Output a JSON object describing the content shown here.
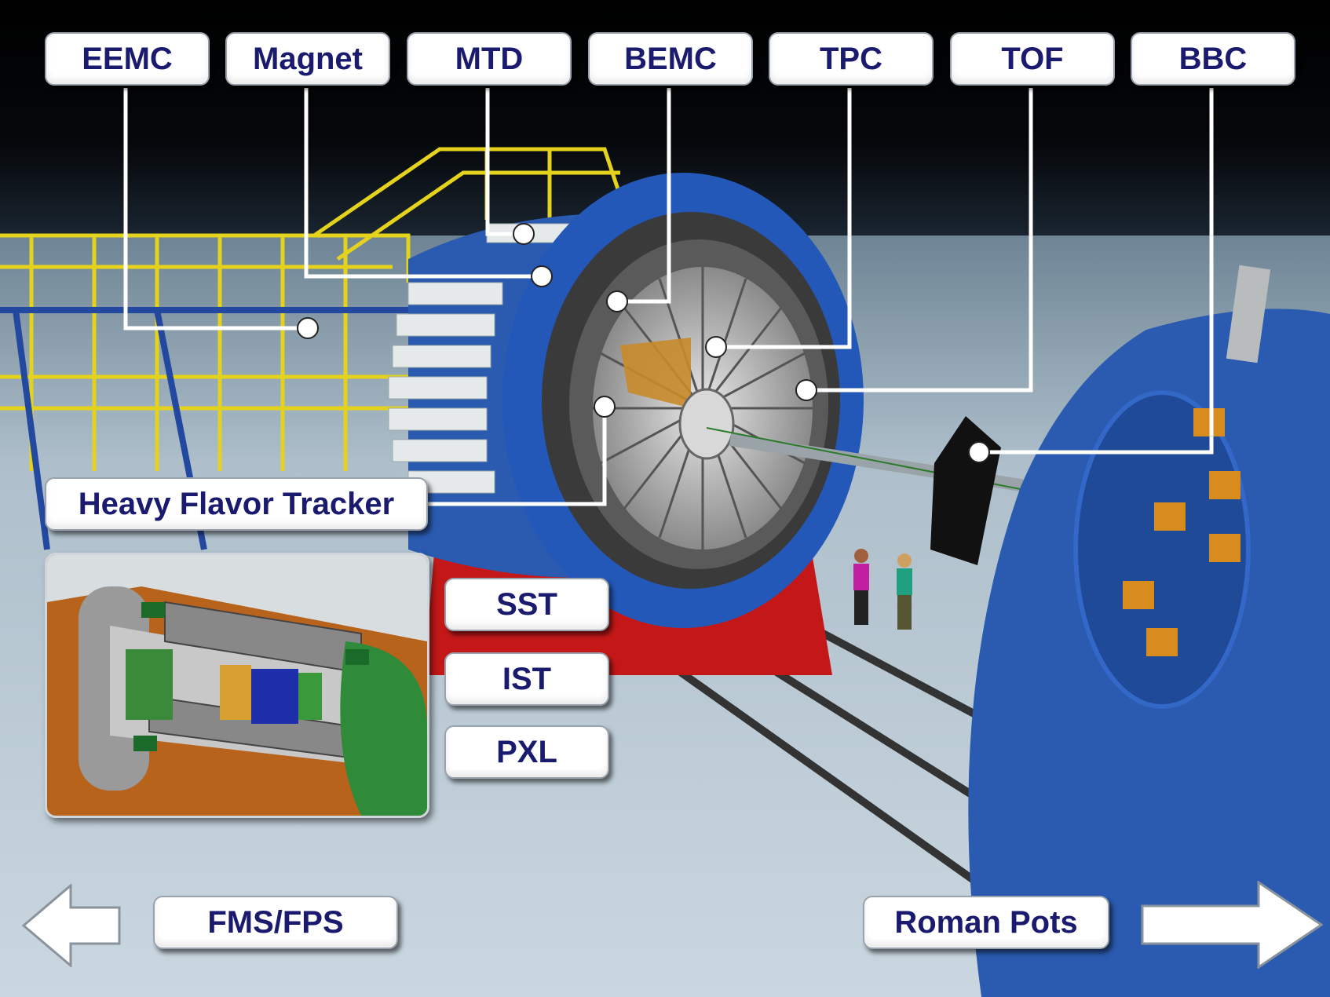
{
  "top_labels": [
    "EEMC",
    "Magnet",
    "MTD",
    "BEMC",
    "TPC",
    "TOF",
    "BBC"
  ],
  "hft_label": "Heavy Flavor Tracker",
  "hft_sub_labels": [
    "SST",
    "IST",
    "PXL"
  ],
  "nav": {
    "prev_label": "FMS/FPS",
    "next_label": "Roman Pots"
  },
  "colors": {
    "label_text": "#1a1a6e",
    "magnet_blue": "#2a5bb0",
    "support_red": "#c41818",
    "scaffold_yellow": "#e0d020",
    "sky": "#000000",
    "floor": "#c0cfd9"
  },
  "icons": {
    "prev": "left-arrow-icon",
    "next": "right-arrow-icon"
  }
}
